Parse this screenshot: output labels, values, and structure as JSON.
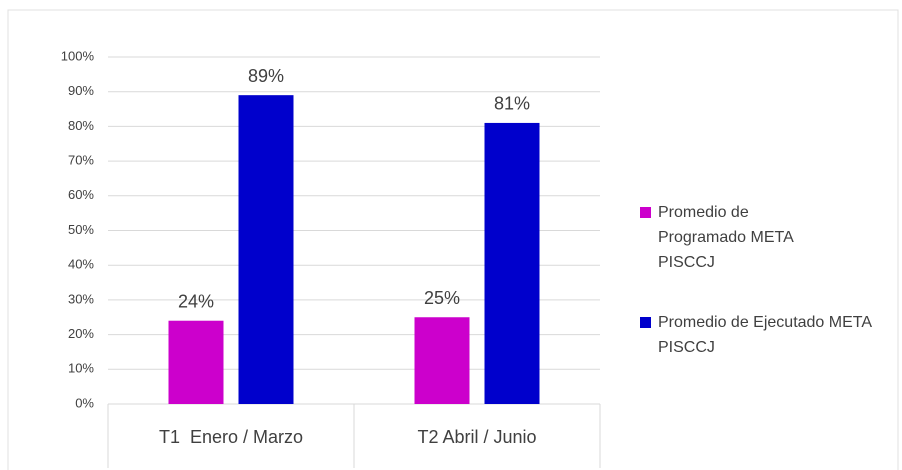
{
  "chart_data": {
    "type": "bar",
    "categories": [
      "T1  Enero / Marzo",
      "T2 Abril / Junio"
    ],
    "series": [
      {
        "name": "Promedio de Programado META PISCCJ",
        "color": "#cc00cc",
        "values": [
          24,
          25
        ],
        "value_labels": [
          "24%",
          "25%"
        ]
      },
      {
        "name": "Promedio de Ejecutado META PISCCJ",
        "color": "#0000cc",
        "values": [
          89,
          81
        ],
        "value_labels": [
          "89%",
          "81%"
        ]
      }
    ],
    "ylim": [
      0,
      100
    ],
    "yticks": [
      {
        "value": 0,
        "label": "0%"
      },
      {
        "value": 10,
        "label": "10%"
      },
      {
        "value": 20,
        "label": "20%"
      },
      {
        "value": 30,
        "label": "30%"
      },
      {
        "value": 40,
        "label": "40%"
      },
      {
        "value": 50,
        "label": "50%"
      },
      {
        "value": 60,
        "label": "60%"
      },
      {
        "value": 70,
        "label": "70%"
      },
      {
        "value": 80,
        "label": "80%"
      },
      {
        "value": 90,
        "label": "90%"
      },
      {
        "value": 100,
        "label": "100%"
      }
    ],
    "grid": true,
    "legend": "right"
  }
}
